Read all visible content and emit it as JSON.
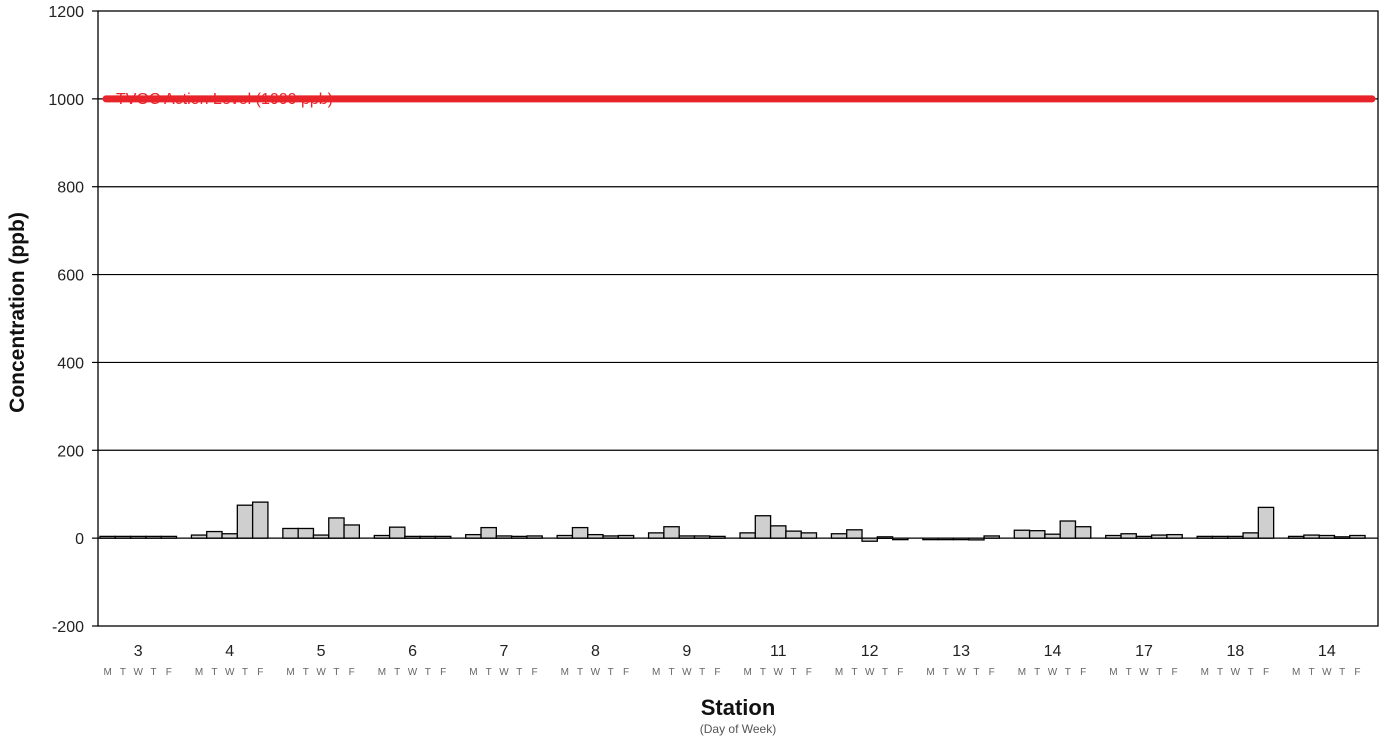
{
  "chart_data": {
    "type": "bar",
    "ylabel": "Concentration (ppb)",
    "xlabel": "Station",
    "xlabel_sub": "(Day of Week)",
    "ylim": [
      -200,
      1200
    ],
    "yticks": [
      -200,
      0,
      200,
      400,
      600,
      800,
      1000,
      1200
    ],
    "grid": true,
    "day_labels": [
      "M",
      "T",
      "W",
      "T",
      "F"
    ],
    "reference_line": {
      "label": "TVOC Action Level (1000 ppb)",
      "value": 1000,
      "color": "#e8242a"
    },
    "bar_color": "#cfcfcf",
    "stations": [
      {
        "name": "3",
        "values": [
          4,
          4,
          4,
          4,
          4
        ]
      },
      {
        "name": "4",
        "values": [
          7,
          15,
          10,
          75,
          82
        ]
      },
      {
        "name": "5",
        "values": [
          22,
          22,
          7,
          46,
          30
        ]
      },
      {
        "name": "6",
        "values": [
          6,
          25,
          4,
          4,
          4
        ]
      },
      {
        "name": "7",
        "values": [
          8,
          24,
          5,
          4,
          5
        ]
      },
      {
        "name": "8",
        "values": [
          6,
          24,
          8,
          5,
          6
        ]
      },
      {
        "name": "9",
        "values": [
          12,
          26,
          5,
          5,
          4
        ]
      },
      {
        "name": "11",
        "values": [
          12,
          51,
          28,
          16,
          12
        ]
      },
      {
        "name": "12",
        "values": [
          10,
          19,
          -7,
          3,
          0
        ]
      },
      {
        "name": "13",
        "values": [
          0,
          0,
          0,
          -4,
          5
        ]
      },
      {
        "name": "14",
        "values": [
          18,
          17,
          9,
          39,
          26
        ]
      },
      {
        "name": "17",
        "values": [
          6,
          10,
          4,
          7,
          8
        ]
      },
      {
        "name": "18",
        "values": [
          4,
          4,
          4,
          12,
          70
        ]
      },
      {
        "name": "14",
        "values": [
          4,
          7,
          6,
          3,
          6
        ]
      }
    ]
  }
}
